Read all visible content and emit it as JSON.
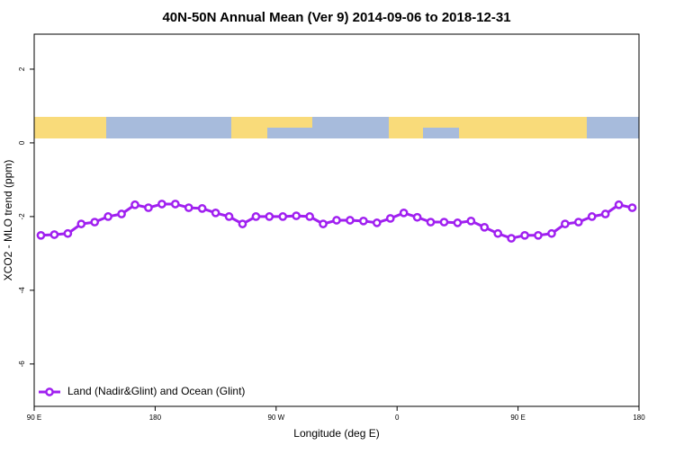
{
  "chart_data": {
    "type": "line",
    "title": "40N-50N Annual Mean (Ver 9)   2014-09-06 to 2018-12-31",
    "x_label": "Longitude (deg E)",
    "y_label": "XCO2 - MLO trend (ppm)",
    "x": [
      95,
      105,
      115,
      125,
      135,
      145,
      155,
      165,
      175,
      185,
      195,
      205,
      215,
      225,
      235,
      245,
      255,
      265,
      275,
      285,
      295,
      305,
      315,
      325,
      335,
      345,
      355,
      365,
      375,
      385,
      395,
      405,
      415,
      425,
      435,
      445,
      455,
      465,
      475,
      485,
      495,
      505,
      515,
      525,
      535
    ],
    "series": [
      {
        "name": "Land (Nadir&Glint) and Ocean (Glint)",
        "color": "#a020f0",
        "values": [
          -2.51,
          -2.49,
          -2.46,
          -2.2,
          -2.15,
          -2.0,
          -1.93,
          -1.68,
          -1.76,
          -1.66,
          -1.66,
          -1.76,
          -1.78,
          -1.9,
          -2.0,
          -2.2,
          -2.0,
          -2.0,
          -2.0,
          -1.98,
          -2.0,
          -2.2,
          -2.1,
          -2.1,
          -2.12,
          -2.17,
          -2.05,
          -1.9,
          -2.02,
          -2.15,
          -2.15,
          -2.17,
          -2.12,
          -2.29,
          -2.46,
          -2.59,
          -2.51,
          -2.51,
          -2.46,
          -2.2,
          -2.15,
          -2.0,
          -1.93,
          -1.68,
          -1.76
        ]
      }
    ],
    "xlim": [
      90,
      540
    ],
    "xticks": [
      {
        "value": 90,
        "label": "90 E"
      },
      {
        "value": 180,
        "label": "180"
      },
      {
        "value": 270,
        "label": "90 W"
      },
      {
        "value": 360,
        "label": "0"
      },
      {
        "value": 450,
        "label": "90 E"
      },
      {
        "value": 540,
        "label": "180"
      }
    ],
    "ylim": [
      -7.15,
      2.95
    ],
    "yticks": [
      -6,
      -4,
      -2,
      0,
      2
    ],
    "legend": "bottom-left"
  }
}
